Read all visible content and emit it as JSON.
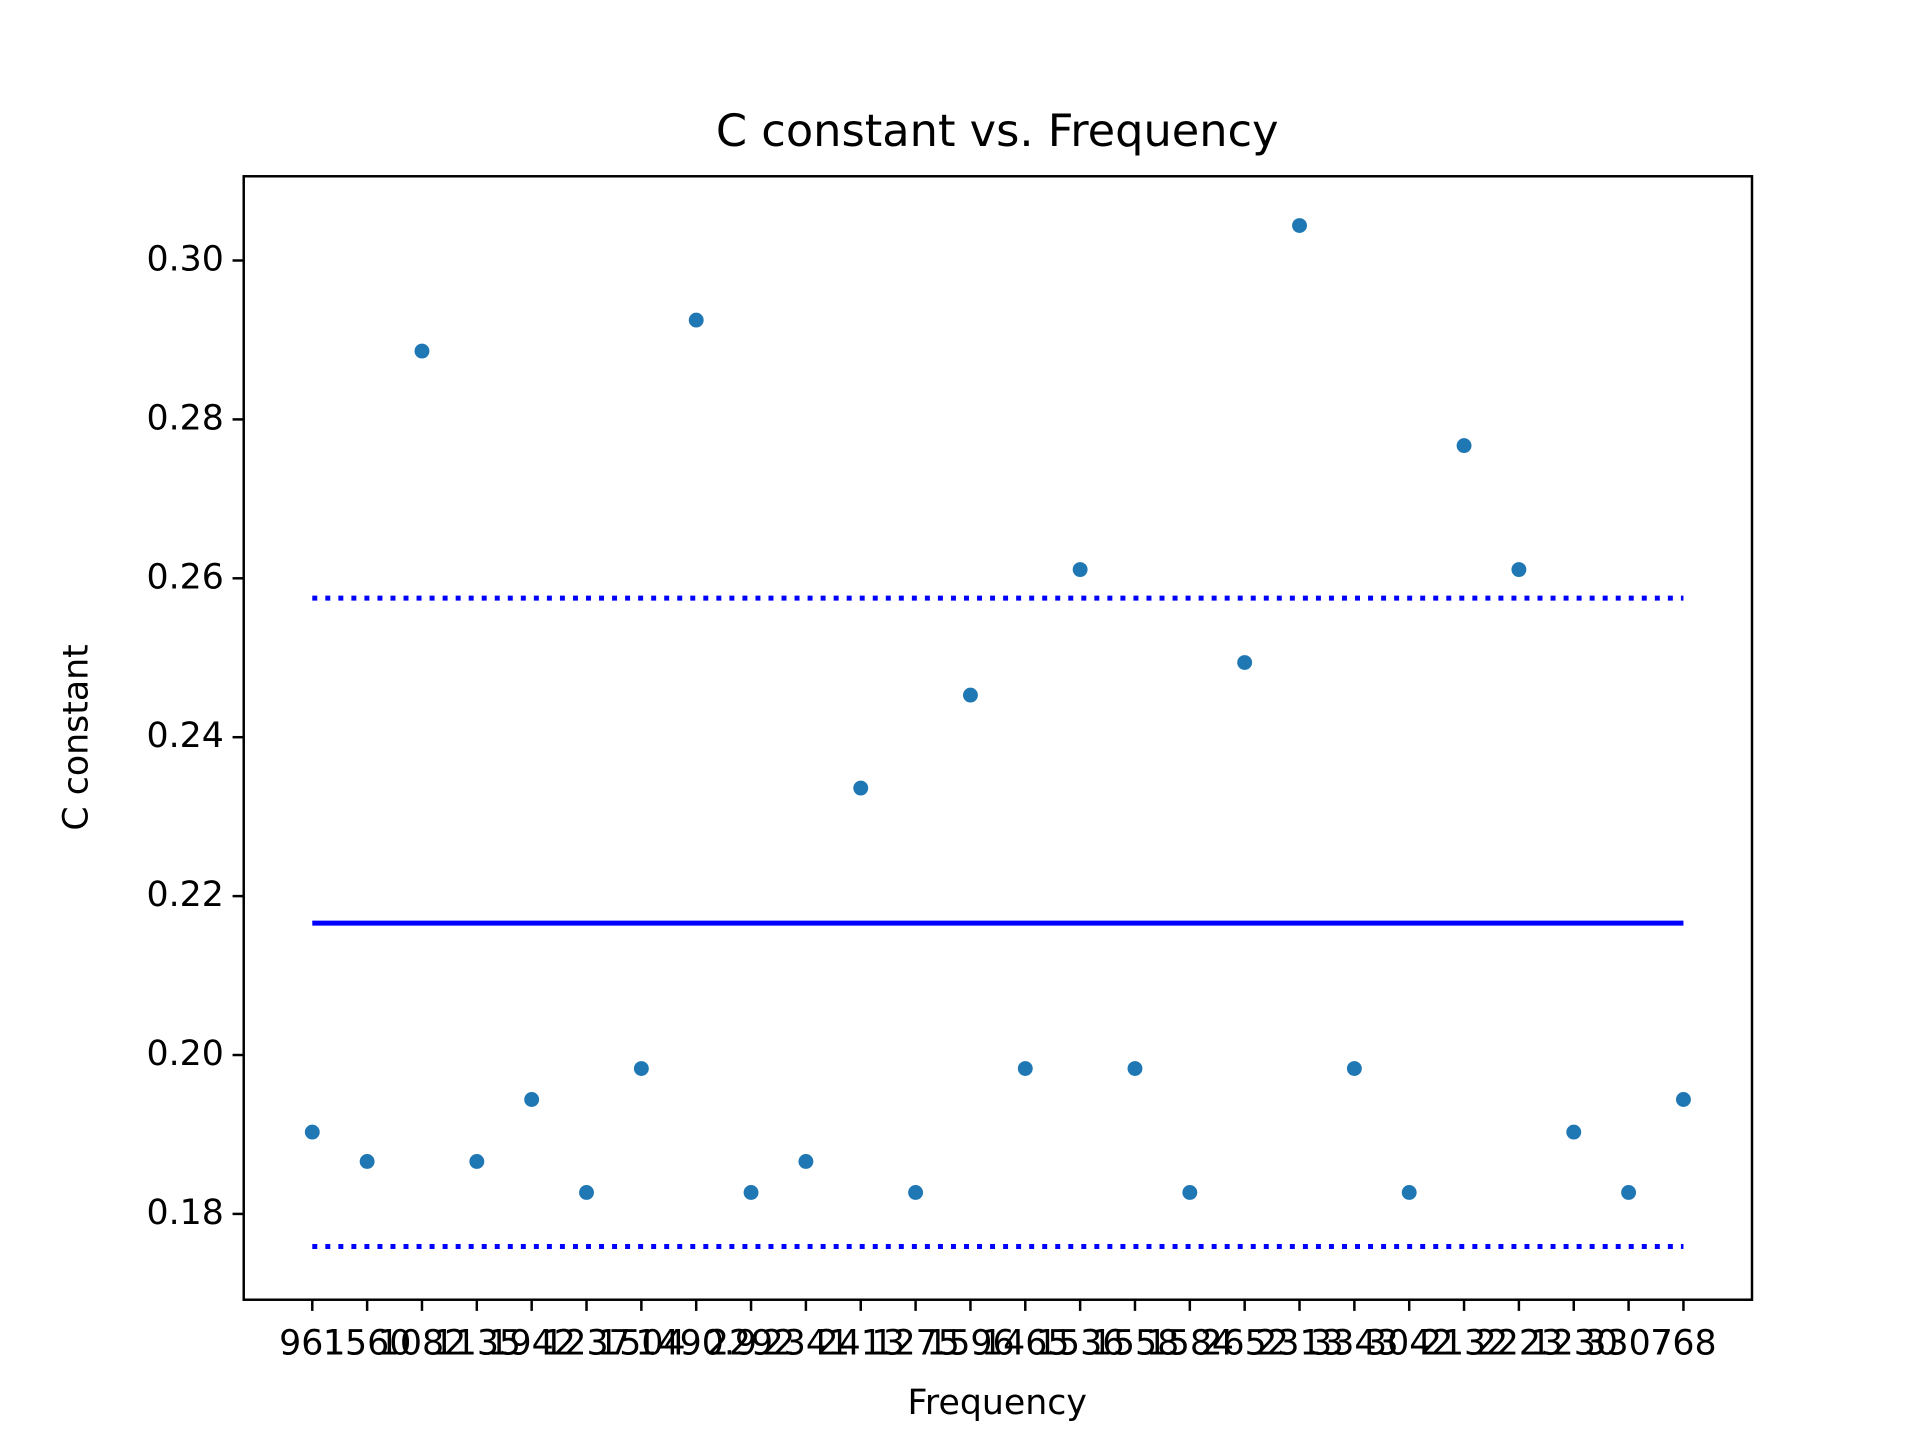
{
  "chart_data": {
    "type": "scatter",
    "title": "C constant vs. Frequency",
    "xlabel": "Frequency",
    "ylabel": "C constant",
    "categories": [
      "961",
      "1560",
      "1082",
      "1135",
      "1942",
      "1237",
      "1504",
      "1490.9",
      "2292",
      "2341",
      "2413",
      "1275",
      "1596",
      "1465",
      "1536",
      "1558",
      "1584",
      "2652",
      "2313",
      "3343",
      "3042",
      "2132",
      "2223",
      "1230",
      "3307",
      "768"
    ],
    "series": [
      {
        "color": "#1f77b4",
        "values": [
          0.1903,
          0.1866,
          0.2886,
          0.1866,
          0.1944,
          0.1827,
          0.1983,
          0.2925,
          0.1827,
          0.1866,
          0.2336,
          0.1827,
          0.2453,
          0.1983,
          0.2611,
          0.1983,
          0.1827,
          0.2494,
          0.3044,
          0.1983,
          0.1827,
          0.2767,
          0.2611,
          0.1903,
          0.1827,
          0.1944
        ]
      }
    ],
    "hlines": [
      {
        "value": 0.2166,
        "style": "solid",
        "color": "#0000ff"
      },
      {
        "value": 0.2575,
        "style": "dotted",
        "color": "#0000ff"
      },
      {
        "value": 0.1759,
        "style": "dotted",
        "color": "#0000ff"
      }
    ],
    "ylim": [
      0.1692,
      0.3106
    ],
    "yticks": [
      {
        "value": 0.18,
        "label": "0.18"
      },
      {
        "value": 0.2,
        "label": "0.20"
      },
      {
        "value": 0.22,
        "label": "0.22"
      },
      {
        "value": 0.24,
        "label": "0.24"
      },
      {
        "value": 0.26,
        "label": "0.26"
      },
      {
        "value": 0.28,
        "label": "0.28"
      },
      {
        "value": 0.3,
        "label": "0.30"
      }
    ]
  }
}
